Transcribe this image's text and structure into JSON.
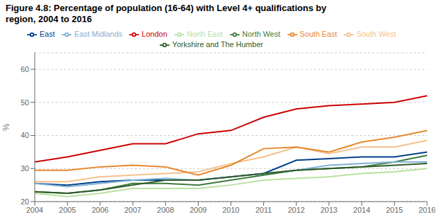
{
  "chart_data": {
    "type": "line",
    "title": "Figure 4.8: Percentage of population (16-64) with Level 4+ qualifications by\nregion, 2004 to 2016",
    "ylabel": "%",
    "x": [
      2004,
      2005,
      2006,
      2007,
      2008,
      2009,
      2010,
      2011,
      2012,
      2013,
      2014,
      2015,
      2016
    ],
    "xlim": [
      2004,
      2016
    ],
    "xticks": [
      2004,
      2005,
      2006,
      2007,
      2008,
      2009,
      2010,
      2011,
      2012,
      2013,
      2014,
      2015,
      2016
    ],
    "ylim": [
      20,
      65
    ],
    "yticks": [
      20,
      30,
      40,
      50,
      60
    ],
    "grid": true,
    "legend": "top",
    "series": [
      {
        "name": "East",
        "color": "#003f8a",
        "values": [
          25.5,
          25.0,
          26.0,
          26.5,
          26.5,
          26.5,
          27.5,
          28.5,
          32.5,
          33.0,
          33.5,
          33.5,
          35.0
        ]
      },
      {
        "name": "London",
        "color": "#cc0000",
        "values": [
          32.0,
          33.5,
          35.5,
          37.5,
          37.5,
          40.5,
          41.5,
          45.5,
          48.0,
          49.0,
          49.5,
          50.0,
          52.0
        ]
      },
      {
        "name": "North West",
        "color": "#3a7a3a",
        "values": [
          23.0,
          22.5,
          23.5,
          25.5,
          25.5,
          25.0,
          26.5,
          28.0,
          29.5,
          30.0,
          30.5,
          32.0,
          34.0
        ]
      },
      {
        "name": "South West",
        "color": "#f5c08a",
        "values": [
          26.0,
          26.0,
          27.5,
          28.0,
          28.5,
          29.0,
          31.5,
          33.5,
          36.5,
          34.5,
          36.5,
          36.5,
          38.5
        ]
      },
      {
        "name": "East Midlands",
        "color": "#7db0d5",
        "values": [
          25.5,
          24.5,
          25.5,
          26.5,
          27.0,
          26.5,
          27.5,
          28.5,
          29.5,
          31.0,
          31.5,
          32.0,
          32.0
        ]
      },
      {
        "name": "North East",
        "color": "#b8e0a0",
        "values": [
          22.5,
          21.5,
          22.5,
          24.0,
          24.0,
          24.0,
          25.0,
          26.5,
          27.0,
          27.5,
          28.5,
          29.0,
          30.0
        ]
      },
      {
        "name": "South East",
        "color": "#e8872a",
        "values": [
          29.5,
          29.5,
          30.5,
          31.0,
          30.5,
          28.0,
          31.0,
          36.0,
          36.5,
          35.0,
          38.0,
          39.5,
          41.5
        ]
      },
      {
        "name": "Yorkshire and The Humber",
        "color": "#2d5a27",
        "values": [
          23.0,
          22.5,
          23.5,
          25.0,
          26.5,
          26.5,
          27.5,
          28.5,
          29.5,
          30.0,
          30.5,
          31.0,
          31.5
        ]
      }
    ]
  }
}
